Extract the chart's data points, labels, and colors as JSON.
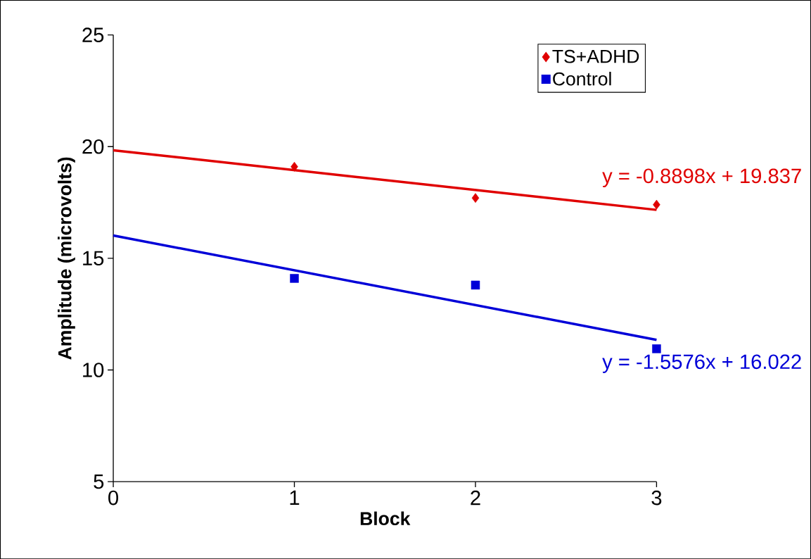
{
  "chart_data": {
    "type": "scatter",
    "xlabel": "Block",
    "ylabel": "Amplitude (microvolts)",
    "xlim": [
      0,
      3
    ],
    "xticks": [
      0,
      1,
      2,
      3
    ],
    "ylim": [
      5,
      25
    ],
    "yticks": [
      5,
      10,
      15,
      20,
      25
    ],
    "grid": false,
    "legend": "top right",
    "series": [
      {
        "name": "TS+ADHD",
        "color": "#e00000",
        "marker": "diamond",
        "x": [
          1,
          2,
          3
        ],
        "values": [
          19.1,
          17.7,
          17.4
        ]
      },
      {
        "name": "Control",
        "color": "#0000d8",
        "marker": "square",
        "x": [
          1,
          2,
          3
        ],
        "values": [
          14.1,
          13.8,
          10.95
        ]
      },
      {
        "type": "line",
        "color": "#e00000",
        "x": [
          0,
          3
        ],
        "values": [
          19.837,
          17.168
        ]
      },
      {
        "type": "line",
        "color": "#0000d8",
        "x": [
          0,
          3
        ],
        "values": [
          16.022,
          11.349
        ]
      }
    ],
    "annotations": [
      {
        "text": "y = -0.8898x + 19.837",
        "x": 3,
        "y": 17.168
      },
      {
        "text": "y = -1.5576x + 16.022",
        "x": 3,
        "y": 11.349
      }
    ]
  }
}
